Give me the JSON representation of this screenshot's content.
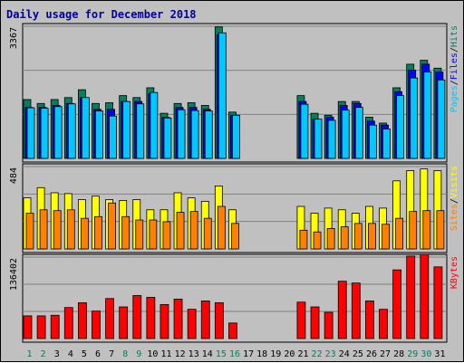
{
  "colors": {
    "background": "#c0c0c0",
    "panel": "#c0c0c0",
    "title": "#0000a0",
    "hits": "#00805c",
    "files": "#0000ff",
    "pages": "#00c8ff",
    "visits": "#ffff00",
    "sites": "#ff8000",
    "kbytes": "#ff0000",
    "day_label": "#000000",
    "weekend_label": "#00805c"
  },
  "chart_data": {
    "type": "bar",
    "title": "Daily usage for December 2018",
    "x": [
      "1",
      "2",
      "3",
      "4",
      "5",
      "6",
      "7",
      "8",
      "9",
      "10",
      "11",
      "12",
      "13",
      "14",
      "15",
      "16",
      "17",
      "18",
      "19",
      "20",
      "21",
      "22",
      "23",
      "24",
      "25",
      "26",
      "27",
      "28",
      "29",
      "30",
      "31"
    ],
    "weekend_days": [
      "1",
      "2",
      "8",
      "9",
      "15",
      "16",
      "22",
      "23",
      "29",
      "30"
    ],
    "panels": [
      {
        "name": "hits-files-pages",
        "ymax_label": "3367",
        "ylim": [
          0,
          3367
        ],
        "legend": [
          {
            "label": "Pages",
            "color": "#00c8ff"
          },
          {
            "label": "/",
            "color": "#000000"
          },
          {
            "label": "Files",
            "color": "#0000ff"
          },
          {
            "label": "/",
            "color": "#000000"
          },
          {
            "label": "Hits",
            "color": "#00805c"
          }
        ],
        "series": [
          {
            "name": "Hits",
            "color": "#00805c",
            "values": [
              1500,
              1400,
              1500,
              1550,
              1750,
              1400,
              1420,
              1600,
              1550,
              1800,
              1150,
              1400,
              1420,
              1350,
              3350,
              1180,
              null,
              null,
              null,
              null,
              1600,
              1150,
              1100,
              1450,
              1450,
              1050,
              900,
              1800,
              2400,
              2500,
              2300
            ]
          },
          {
            "name": "Files",
            "color": "#0000ff",
            "values": [
              1300,
              1300,
              1350,
              1400,
              1550,
              1250,
              1250,
              1450,
              1450,
              1650,
              1050,
              1300,
              1300,
              1250,
              3150,
              1100,
              null,
              null,
              null,
              null,
              1450,
              1000,
              1050,
              1350,
              1400,
              950,
              850,
              1700,
              2250,
              2400,
              2200
            ]
          },
          {
            "name": "Pages",
            "color": "#00c8ff",
            "values": [
              1290,
              1280,
              1320,
              1390,
              1550,
              1210,
              1080,
              1450,
              1390,
              1680,
              1030,
              1240,
              1220,
              1210,
              3200,
              1100,
              null,
              null,
              null,
              null,
              1380,
              1000,
              970,
              1230,
              1300,
              850,
              750,
              1600,
              2050,
              2200,
              2000
            ]
          }
        ]
      },
      {
        "name": "visits-sites",
        "ymax_label": "484",
        "ylim": [
          0,
          484
        ],
        "legend": [
          {
            "label": "Sites",
            "color": "#ff8000"
          },
          {
            "label": "/",
            "color": "#000000"
          },
          {
            "label": "Visits",
            "color": "#ffff00"
          }
        ],
        "series": [
          {
            "name": "Visits",
            "color": "#ffff00",
            "values": [
              300,
              360,
              330,
              325,
              290,
              310,
              290,
              285,
              290,
              230,
              230,
              330,
              300,
              280,
              370,
              230,
              null,
              null,
              null,
              null,
              250,
              210,
              240,
              230,
              210,
              250,
              240,
              400,
              460,
              470,
              460
            ]
          },
          {
            "name": "Sites",
            "color": "#ff8000",
            "values": [
              210,
              230,
              225,
              230,
              180,
              190,
              270,
              190,
              170,
              170,
              160,
              215,
              220,
              180,
              250,
              150,
              null,
              null,
              null,
              null,
              110,
              100,
              120,
              130,
              150,
              150,
              145,
              180,
              220,
              225,
              225
            ]
          }
        ]
      },
      {
        "name": "kbytes",
        "ymax_label": "136402",
        "ylim": [
          0,
          136402
        ],
        "legend": [
          {
            "label": "KBytes",
            "color": "#ff0000"
          }
        ],
        "series": [
          {
            "name": "KBytes",
            "color": "#ff0000",
            "values": [
              38000,
              38000,
              39000,
              52000,
              60000,
              46000,
              67000,
              53000,
              72000,
              69000,
              57000,
              66000,
              49000,
              63000,
              60000,
              26000,
              null,
              null,
              null,
              null,
              61000,
              53000,
              44000,
              96000,
              93000,
              63000,
              49000,
              115000,
              138000,
              141000,
              120000
            ]
          }
        ]
      }
    ]
  }
}
